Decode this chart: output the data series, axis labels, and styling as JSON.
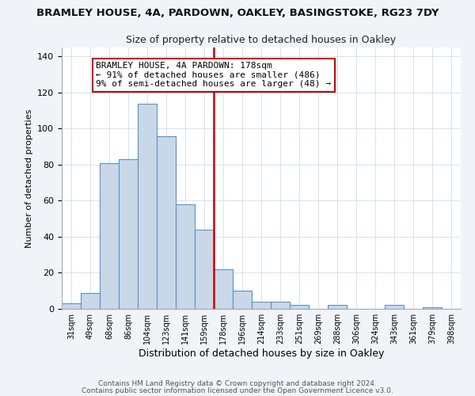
{
  "title": "BRAMLEY HOUSE, 4A, PARDOWN, OAKLEY, BASINGSTOKE, RG23 7DY",
  "subtitle": "Size of property relative to detached houses in Oakley",
  "xlabel": "Distribution of detached houses by size in Oakley",
  "ylabel": "Number of detached properties",
  "bin_labels": [
    "31sqm",
    "49sqm",
    "68sqm",
    "86sqm",
    "104sqm",
    "123sqm",
    "141sqm",
    "159sqm",
    "178sqm",
    "196sqm",
    "214sqm",
    "233sqm",
    "251sqm",
    "269sqm",
    "288sqm",
    "306sqm",
    "324sqm",
    "343sqm",
    "361sqm",
    "379sqm",
    "398sqm"
  ],
  "bar_values": [
    3,
    9,
    81,
    83,
    114,
    96,
    58,
    44,
    22,
    10,
    4,
    4,
    2,
    0,
    2,
    0,
    0,
    2,
    0,
    1,
    0
  ],
  "bar_color": "#c8d8e8",
  "bar_edgecolor": "#5b8fcc",
  "vline_x_index": 8,
  "vline_color": "#cc0000",
  "annotation_line1": "BRAMLEY HOUSE, 4A PARDOWN: 178sqm",
  "annotation_line2": "← 91% of detached houses are smaller (486)",
  "annotation_line3": "9% of semi-detached houses are larger (48) →",
  "annotation_box_color": "#ffffff",
  "annotation_box_edgecolor": "#cc0000",
  "ylim": [
    0,
    145
  ],
  "yticks": [
    0,
    20,
    40,
    60,
    80,
    100,
    120,
    140
  ],
  "footer1": "Contains HM Land Registry data © Crown copyright and database right 2024.",
  "footer2": "Contains public sector information licensed under the Open Government Licence v3.0.",
  "bg_color": "#f0f4f8",
  "plot_bg_color": "#ffffff"
}
